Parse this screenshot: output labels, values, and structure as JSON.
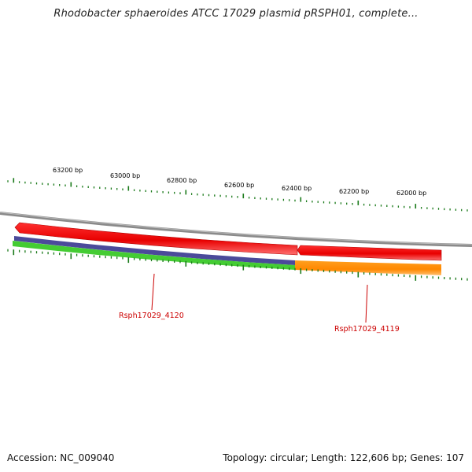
{
  "title": "Rhodobacter sphaeroides ATCC 17029 plasmid pRSPH01, complete...",
  "scale_labels": [
    "63200 bp",
    "63000 bp",
    "62800 bp",
    "62600 bp",
    "62400 bp",
    "62200 bp",
    "62000 bp"
  ],
  "genes": [
    {
      "label": "Rsph17029_4120",
      "color": "#cc0000"
    },
    {
      "label": "Rsph17029_4119",
      "color": "#cc0000"
    }
  ],
  "colors": {
    "backbone": "#8c8c8c",
    "tick": "#1a7a1a",
    "forward_strand": "#ee0000",
    "reverse_strand_a": "#4b4a9a",
    "reverse_strand_b": "#44cc33",
    "reverse_strand_c": "#ff8800"
  },
  "footer": {
    "accession": "Accession: NC_009040",
    "summary": "Topology: circular; Length: 122,606 bp; Genes: 107"
  }
}
